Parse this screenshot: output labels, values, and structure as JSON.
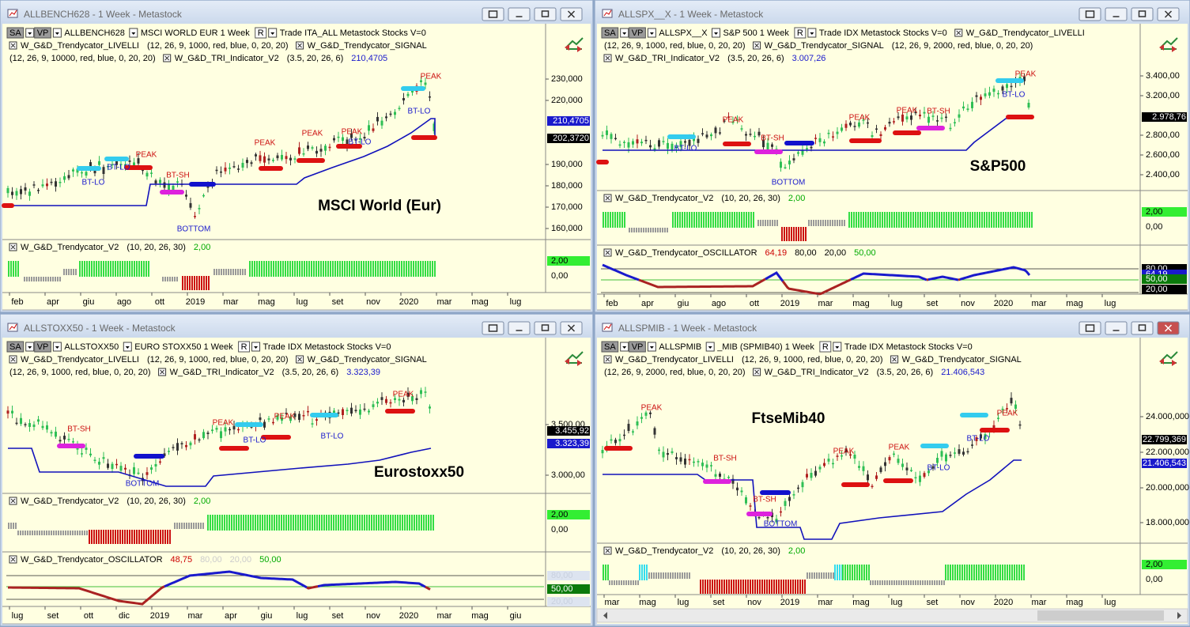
{
  "windows": [
    {
      "title": "ALLBENCH628 - 1 Week - Metastock",
      "header": [
        [
          "SA",
          "VP",
          "ALLBENCH628",
          "MSCI WORLD EUR  1 Week",
          "R",
          "Trade  ITA_ALL  Metastock  Stocks  V=0"
        ],
        [
          "W_G&D_Trendycator_LIVELLI",
          "(12, 26, 9, 1000, red, blue, 0, 20, 20)",
          "W_G&D_Trendycator_SIGNAL"
        ],
        [
          "(12, 26, 9, 10000, red, blue, 0, 20, 20)",
          "W_G&D_TRI_Indicator_V2",
          "(3.5, 20, 26, 6)",
          "210,4705"
        ]
      ],
      "label": "MSCI World (Eur)",
      "yticks": [
        "230,000",
        "220,000",
        "190,000",
        "180,000",
        "170,000",
        "160,000"
      ],
      "price_tags": [
        "202,3720",
        "210,4705"
      ],
      "annotations": [
        "BT-LO",
        "BT-LO",
        "PEAK",
        "BT-SH",
        "BOTTOM",
        "PEAK",
        "PEAK",
        "PEAK",
        "BT-LO",
        "BT-LO",
        "PEAK"
      ],
      "panels": [
        {
          "header": [
            "W_G&D_Trendycator_V2",
            "(10, 20, 26, 30)",
            "2,00"
          ],
          "ticks": [
            "2,00",
            "0,00"
          ]
        }
      ],
      "months": [
        "feb",
        "apr",
        "giu",
        "ago",
        "ott",
        "2019",
        "mar",
        "mag",
        "lug",
        "set",
        "nov",
        "2020",
        "mar",
        "mag",
        "lug"
      ]
    },
    {
      "title": "ALLSPX__X - 1 Week - Metastock",
      "header": [
        [
          "SA",
          "VP",
          "ALLSPX__X",
          "S&P 500  1 Week",
          "R",
          "Trade  IDX  Metastock  Stocks  V=0",
          "W_G&D_Trendycator_LIVELLI"
        ],
        [
          "(12, 26, 9, 1000, red, blue, 0, 20, 20)",
          "W_G&D_Trendycator_SIGNAL",
          "(12, 26, 9, 2000, red, blue, 0, 20, 20)"
        ],
        [
          "W_G&D_TRI_Indicator_V2",
          "(3.5, 20, 26, 6)",
          "3.007,26"
        ]
      ],
      "label": "S&P500",
      "yticks": [
        "3.400,00",
        "3.200,00",
        "2.800,00",
        "2.600,00",
        "2.400,00"
      ],
      "price_tags": [
        "2.978,76"
      ],
      "annotations": [
        "PEAK",
        "BT-LO",
        "BT-SH",
        "BOTTOM",
        "PEAK",
        "PEAK",
        "BT-SH",
        "BT-LO",
        "PEAK"
      ],
      "panels": [
        {
          "header": [
            "W_G&D_Trendycator_V2",
            "(10, 20, 26, 30)",
            "2,00"
          ],
          "ticks": [
            "2,00",
            "0,00"
          ]
        },
        {
          "header": [
            "W_G&D_Trendycator_OSCILLATOR",
            "64,19",
            "80,00",
            "20,00",
            "50,00"
          ],
          "ticks": [
            "80,00",
            "64,19",
            "50,00",
            "20,00"
          ]
        }
      ],
      "months": [
        "feb",
        "apr",
        "giu",
        "ago",
        "ott",
        "2019",
        "mar",
        "mag",
        "lug",
        "set",
        "nov",
        "2020",
        "mar",
        "mag",
        "lug"
      ]
    },
    {
      "title": "ALLSTOXX50 - 1 Week - Metastock",
      "header": [
        [
          "SA",
          "VP",
          "ALLSTOXX50",
          "EURO STOXX50  1 Week",
          "R",
          "Trade  IDX  Metastock  Stocks  V=0"
        ],
        [
          "W_G&D_Trendycator_LIVELLI",
          "(12, 26, 9, 1000, red, blue, 0, 20, 20)",
          "W_G&D_Trendycator_SIGNAL"
        ],
        [
          "(12, 26, 9, 1000, red, blue, 0, 20, 20)",
          "W_G&D_TRI_Indicator_V2",
          "(3.5, 20, 26, 6)",
          "3.323,39"
        ]
      ],
      "label": "Eurostoxx50",
      "yticks": [
        "3.500,00",
        "3.000,00"
      ],
      "price_tags": [
        "3.455,92",
        "3.323,39"
      ],
      "annotations": [
        "BT-SH",
        "BOTTOM",
        "PEAK",
        "BT-LO",
        "PEAK",
        "BT-LO",
        "PEAK"
      ],
      "panels": [
        {
          "header": [
            "W_G&D_Trendycator_V2",
            "(10, 20, 26, 30)",
            "2,00"
          ],
          "ticks": [
            "2,00",
            "0,00"
          ]
        },
        {
          "header": [
            "W_G&D_Trendycator_OSCILLATOR",
            "48,75",
            "80,00",
            "20,00",
            "50,00"
          ],
          "ticks": [
            "80,00",
            "50,00",
            "20,00"
          ]
        }
      ],
      "months": [
        "lug",
        "set",
        "ott",
        "dic",
        "2019",
        "mar",
        "apr",
        "giu",
        "lug",
        "set",
        "nov",
        "2020",
        "mar",
        "mag",
        "giu"
      ]
    },
    {
      "title": "ALLSPMIB - 1 Week - Metastock",
      "header": [
        [
          "SA",
          "VP",
          "ALLSPMIB",
          "_MIB (SPMIB40)  1 Week",
          "R",
          "Trade  IDX  Metastock  Stocks  V=0"
        ],
        [
          "W_G&D_Trendycator_LIVELLI",
          "(12, 26, 9, 1000, red, blue, 0, 20, 20)",
          "W_G&D_Trendycator_SIGNAL"
        ],
        [
          "(12, 26, 9, 2000, red, blue, 0, 20, 20)",
          "W_G&D_TRI_Indicator_V2",
          "(3.5, 20, 26, 6)",
          "21.406,543"
        ]
      ],
      "label": "FtseMib40",
      "yticks": [
        "24.000,000",
        "22.000,000",
        "20.000,000",
        "18.000,000"
      ],
      "price_tags": [
        "22.799,369",
        "21.406,543"
      ],
      "annotations": [
        "PEAK",
        "BT-SH",
        "BT-SH",
        "BOTTOM",
        "PEAK",
        "PEAK",
        "BT-LO",
        "BT-LO",
        "PEAK"
      ],
      "panels": [
        {
          "header": [
            "W_G&D_Trendycator_V2",
            "(10, 20, 26, 30)",
            "2,00"
          ],
          "ticks": [
            "2,00",
            "0,00"
          ]
        }
      ],
      "months": [
        "mar",
        "mag",
        "lug",
        "set",
        "nov",
        "2019",
        "mar",
        "mag",
        "lug",
        "set",
        "nov",
        "2020",
        "mar",
        "mag",
        "lug"
      ]
    }
  ]
}
